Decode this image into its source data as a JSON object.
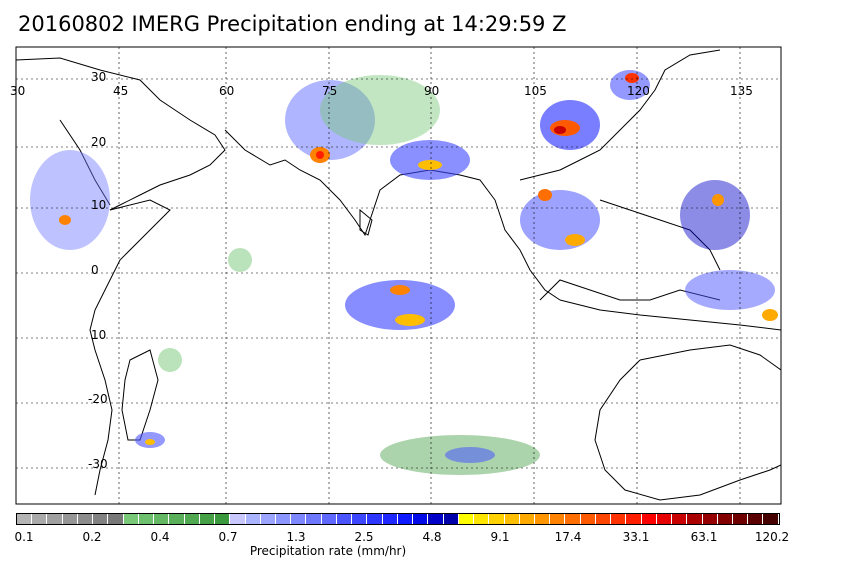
{
  "title": "20160802 IMERG Precipitation ending at 14:29:59 Z",
  "lon_labels": [
    "30",
    "45",
    "60",
    "75",
    "90",
    "105",
    "120",
    "135"
  ],
  "lat_labels": [
    "30",
    "20",
    "10",
    "0",
    "10",
    "-20",
    "-30"
  ],
  "colorbar": {
    "title": "Precipitation rate (mm/hr)",
    "tick_labels": [
      "0.1",
      "0.2",
      "0.4",
      "0.7",
      "1.3",
      "2.5",
      "4.8",
      "9.1",
      "17.4",
      "33.1",
      "63.1",
      "120.2"
    ],
    "colors": [
      "#b4b4b4",
      "#aaaaaa",
      "#a0a0a0",
      "#969696",
      "#8c8c8c",
      "#828282",
      "#787878",
      "#78c878",
      "#6ec06e",
      "#64b864",
      "#5ab05a",
      "#50a850",
      "#46a046",
      "#3c983c",
      "#c8c8ff",
      "#aab4ff",
      "#9ba5ff",
      "#8c96ff",
      "#7d87ff",
      "#6e78ff",
      "#5f69ff",
      "#4b55ff",
      "#3c46ff",
      "#2d37ff",
      "#1e28ff",
      "#0f19ff",
      "#000ae6",
      "#0000c8",
      "#0000aa",
      "#ffff00",
      "#ffe600",
      "#ffd200",
      "#ffbe00",
      "#ffaa00",
      "#ff9600",
      "#ff8200",
      "#ff6e00",
      "#ff5a00",
      "#ff4600",
      "#ff3200",
      "#ff1e00",
      "#ff0000",
      "#e60000",
      "#c80000",
      "#aa0000",
      "#960000",
      "#820000",
      "#6e0000",
      "#5a0000",
      "#460000"
    ]
  }
}
